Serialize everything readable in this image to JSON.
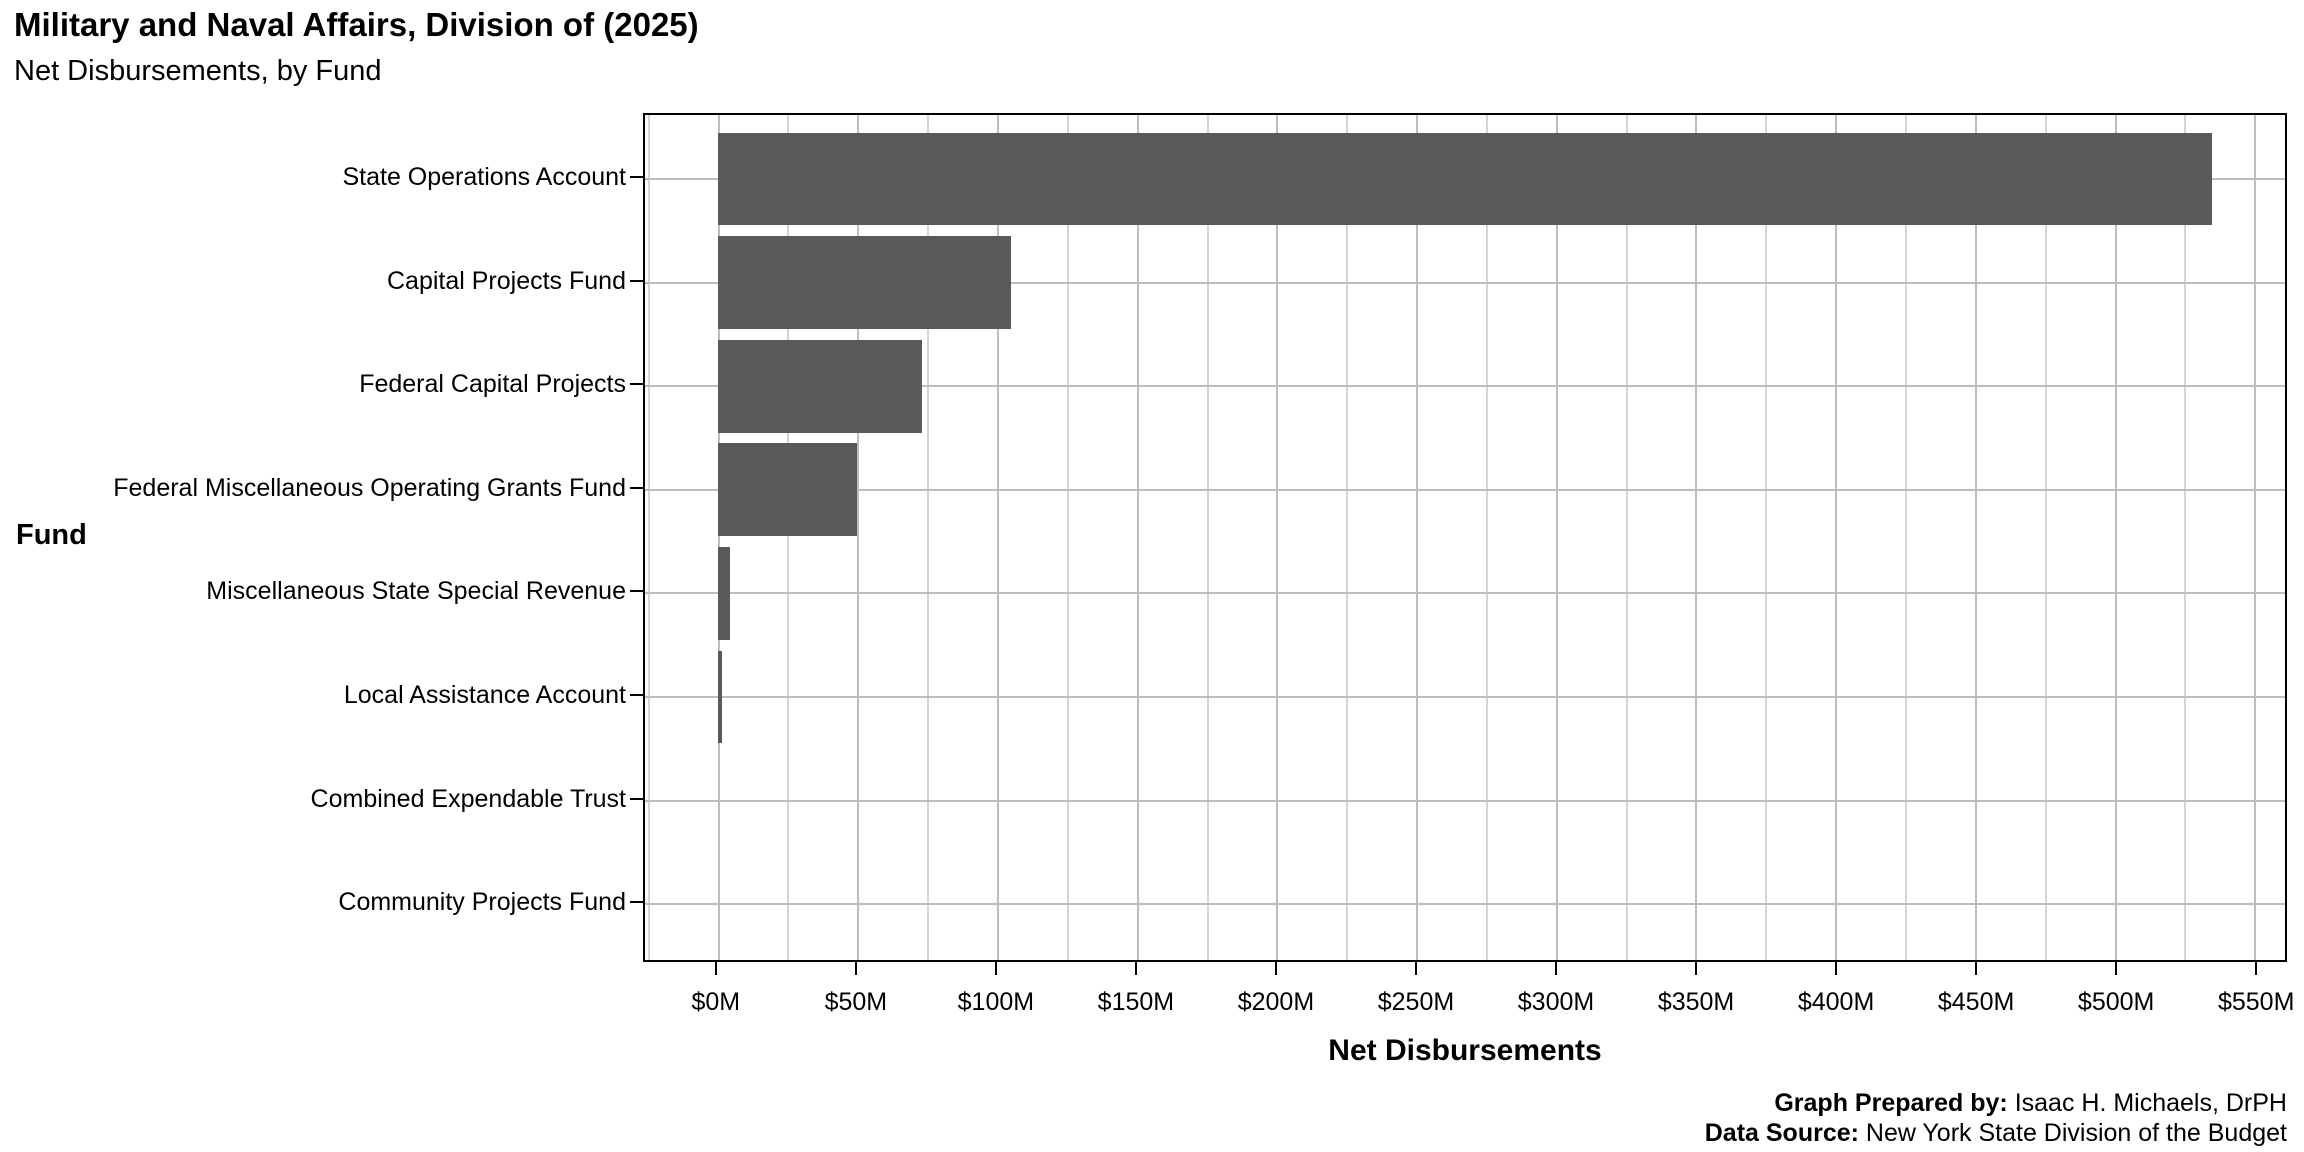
{
  "title": "Military and Naval Affairs, Division of (2025)",
  "subtitle": "Net Disbursements, by Fund",
  "footer": {
    "prepared_by_label": "Graph Prepared by:",
    "prepared_by_value": " Isaac H. Michaels, DrPH",
    "source_label": "Data Source:",
    "source_value": " New York State Division of the Budget"
  },
  "colors": {
    "bar": "#595959",
    "panel_border": "#000000",
    "grid_major": "#bdbdbd",
    "grid_minor": "#d4d4d4",
    "text": "#000000"
  },
  "chart_data": {
    "type": "bar",
    "orientation": "horizontal",
    "title": "Military and Naval Affairs, Division of (2025)",
    "subtitle": "Net Disbursements, by Fund",
    "xlabel": "Net Disbursements",
    "ylabel": "Fund",
    "value_unit": "USD millions",
    "categories": [
      "State Operations Account",
      "Capital Projects Fund",
      "Federal Capital Projects",
      "Federal Miscellaneous Operating Grants Fund",
      "Miscellaneous State Special Revenue",
      "Local Assistance Account",
      "Combined Expendable Trust",
      "Community Projects Fund"
    ],
    "values": [
      535,
      105,
      73,
      50,
      4.6,
      1.7,
      0,
      0
    ],
    "xlim": [
      -26,
      561
    ],
    "x_major_ticks": [
      0,
      50,
      100,
      150,
      200,
      250,
      300,
      350,
      400,
      450,
      500,
      550
    ],
    "x_tick_labels": [
      "$0M",
      "$50M",
      "$100M",
      "$150M",
      "$200M",
      "$250M",
      "$300M",
      "$350M",
      "$400M",
      "$450M",
      "$500M",
      "$550M"
    ],
    "x_minor_ticks": [
      -25,
      25,
      75,
      125,
      175,
      225,
      275,
      325,
      375,
      425,
      475,
      525
    ],
    "grid": true,
    "legend": false,
    "bar_gap_ratio": 0.1
  }
}
